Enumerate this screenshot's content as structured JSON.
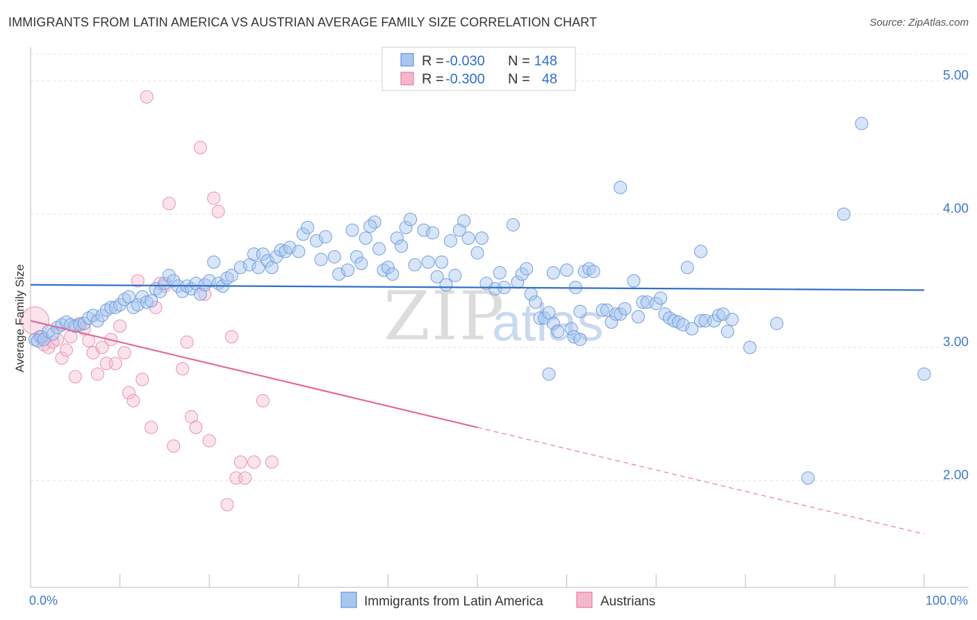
{
  "title": "IMMIGRANTS FROM LATIN AMERICA VS AUSTRIAN AVERAGE FAMILY SIZE CORRELATION CHART",
  "source": "Source: ZipAtlas.com",
  "watermark": {
    "zip": "ZIP",
    "atlas": "atlas"
  },
  "colors": {
    "blue": "#4a84d4",
    "blue_fill": "#a9c6ef",
    "pink": "#e36a96",
    "pink_fill": "#f4b8cc",
    "axis_text": "#3f78c8"
  },
  "chart_data": {
    "type": "scatter",
    "title": "IMMIGRANTS FROM LATIN AMERICA VS AUSTRIAN AVERAGE FAMILY SIZE CORRELATION CHART",
    "xlabel": "",
    "ylabel": "Average Family Size",
    "xlim": [
      0,
      100
    ],
    "ylim": [
      1.2,
      5.2
    ],
    "x_tick_labels": [
      "0.0%",
      "100.0%"
    ],
    "y_ticks": [
      2.0,
      3.0,
      4.0,
      5.0
    ],
    "y_tick_labels": [
      "2.00",
      "3.00",
      "4.00",
      "5.00"
    ],
    "grid": true,
    "legend_position": "top-center",
    "legend": [
      {
        "r_label": "R =",
        "r": "-0.030",
        "n_label": "N =",
        "n": "148"
      },
      {
        "r_label": "R =",
        "r": "-0.300",
        "n_label": "N =",
        "n": "48"
      }
    ],
    "series": [
      {
        "name": "Immigrants from Latin America",
        "color": "#4a84d4",
        "trend": {
          "x": [
            0,
            100
          ],
          "y": [
            3.47,
            3.43
          ],
          "style": "solid"
        },
        "points": [
          [
            0.5,
            3.06
          ],
          [
            0.8,
            3.05
          ],
          [
            1.2,
            3.08
          ],
          [
            1.5,
            3.06
          ],
          [
            2.0,
            3.12
          ],
          [
            2.5,
            3.1
          ],
          [
            3.0,
            3.15
          ],
          [
            3.5,
            3.17
          ],
          [
            4.0,
            3.19
          ],
          [
            4.5,
            3.17
          ],
          [
            5.0,
            3.16
          ],
          [
            5.5,
            3.17
          ],
          [
            6.0,
            3.18
          ],
          [
            6.5,
            3.22
          ],
          [
            7.0,
            3.24
          ],
          [
            7.5,
            3.2
          ],
          [
            8.0,
            3.24
          ],
          [
            8.5,
            3.28
          ],
          [
            9.0,
            3.3
          ],
          [
            9.5,
            3.3
          ],
          [
            10.0,
            3.32
          ],
          [
            10.5,
            3.36
          ],
          [
            11.0,
            3.38
          ],
          [
            11.5,
            3.3
          ],
          [
            12.0,
            3.32
          ],
          [
            12.5,
            3.38
          ],
          [
            13.0,
            3.34
          ],
          [
            13.5,
            3.35
          ],
          [
            14.0,
            3.44
          ],
          [
            14.5,
            3.42
          ],
          [
            15.0,
            3.48
          ],
          [
            15.5,
            3.54
          ],
          [
            16.0,
            3.5
          ],
          [
            16.5,
            3.46
          ],
          [
            17.0,
            3.42
          ],
          [
            17.5,
            3.46
          ],
          [
            18.0,
            3.44
          ],
          [
            18.5,
            3.48
          ],
          [
            19.0,
            3.4
          ],
          [
            19.5,
            3.47
          ],
          [
            20.0,
            3.5
          ],
          [
            20.5,
            3.64
          ],
          [
            21.0,
            3.48
          ],
          [
            21.5,
            3.46
          ],
          [
            22.0,
            3.52
          ],
          [
            22.5,
            3.54
          ],
          [
            23.5,
            3.6
          ],
          [
            24.5,
            3.62
          ],
          [
            25.0,
            3.7
          ],
          [
            25.5,
            3.6
          ],
          [
            26.0,
            3.7
          ],
          [
            26.5,
            3.65
          ],
          [
            27.0,
            3.6
          ],
          [
            27.5,
            3.68
          ],
          [
            28.0,
            3.73
          ],
          [
            28.5,
            3.72
          ],
          [
            29.0,
            3.75
          ],
          [
            30.0,
            3.72
          ],
          [
            30.5,
            3.85
          ],
          [
            31.0,
            3.9
          ],
          [
            32.0,
            3.8
          ],
          [
            32.5,
            3.66
          ],
          [
            33.0,
            3.83
          ],
          [
            34.0,
            3.68
          ],
          [
            34.5,
            3.55
          ],
          [
            35.5,
            3.58
          ],
          [
            36.0,
            3.88
          ],
          [
            36.5,
            3.68
          ],
          [
            37.0,
            3.63
          ],
          [
            37.5,
            3.82
          ],
          [
            38.5,
            3.94
          ],
          [
            38.0,
            3.91
          ],
          [
            39.0,
            3.74
          ],
          [
            39.5,
            3.58
          ],
          [
            40.0,
            3.6
          ],
          [
            40.5,
            3.55
          ],
          [
            41.0,
            3.82
          ],
          [
            41.5,
            3.76
          ],
          [
            42.0,
            3.9
          ],
          [
            42.5,
            3.96
          ],
          [
            43.0,
            3.62
          ],
          [
            44.0,
            3.88
          ],
          [
            44.5,
            3.64
          ],
          [
            45.0,
            3.86
          ],
          [
            45.5,
            3.53
          ],
          [
            46.0,
            3.64
          ],
          [
            46.5,
            3.47
          ],
          [
            47.0,
            3.8
          ],
          [
            47.5,
            3.54
          ],
          [
            48.0,
            3.88
          ],
          [
            48.5,
            3.95
          ],
          [
            49.0,
            3.82
          ],
          [
            50.0,
            3.71
          ],
          [
            50.5,
            3.82
          ],
          [
            51.0,
            3.48
          ],
          [
            52.0,
            3.44
          ],
          [
            52.5,
            3.56
          ],
          [
            53.0,
            3.45
          ],
          [
            54.0,
            3.92
          ],
          [
            54.5,
            3.49
          ],
          [
            55.0,
            3.55
          ],
          [
            55.5,
            3.59
          ],
          [
            56.0,
            3.4
          ],
          [
            56.5,
            3.34
          ],
          [
            57.0,
            3.22
          ],
          [
            57.5,
            3.22
          ],
          [
            58.0,
            3.26
          ],
          [
            58.5,
            3.18
          ],
          [
            59.0,
            3.12
          ],
          [
            60.0,
            3.58
          ],
          [
            60.5,
            3.14
          ],
          [
            61.0,
            3.45
          ],
          [
            61.5,
            3.27
          ],
          [
            62.0,
            3.57
          ],
          [
            62.5,
            3.59
          ],
          [
            63.0,
            3.57
          ],
          [
            64.0,
            3.28
          ],
          [
            64.5,
            3.28
          ],
          [
            65.0,
            3.19
          ],
          [
            65.5,
            3.25
          ],
          [
            66.0,
            3.25
          ],
          [
            66.5,
            3.29
          ],
          [
            67.5,
            3.5
          ],
          [
            68.0,
            3.23
          ],
          [
            68.5,
            3.34
          ],
          [
            69.0,
            3.34
          ],
          [
            70.0,
            3.33
          ],
          [
            70.5,
            3.37
          ],
          [
            71.0,
            3.25
          ],
          [
            71.5,
            3.22
          ],
          [
            72.0,
            3.2
          ],
          [
            72.5,
            3.19
          ],
          [
            73.0,
            3.17
          ],
          [
            73.5,
            3.6
          ],
          [
            74.0,
            3.14
          ],
          [
            75.0,
            3.2
          ],
          [
            75.5,
            3.2
          ],
          [
            76.5,
            3.2
          ],
          [
            77.0,
            3.24
          ],
          [
            77.5,
            3.25
          ],
          [
            78.0,
            3.12
          ],
          [
            78.5,
            3.21
          ],
          [
            80.5,
            3.0
          ],
          [
            83.5,
            3.18
          ],
          [
            75.0,
            3.72
          ],
          [
            58.5,
            3.56
          ],
          [
            60.8,
            3.08
          ],
          [
            61.5,
            3.06
          ],
          [
            66.0,
            4.2
          ],
          [
            58.0,
            2.8
          ],
          [
            87.0,
            2.02
          ],
          [
            91.0,
            4.0
          ],
          [
            93.0,
            4.68
          ],
          [
            100.0,
            2.8
          ]
        ]
      },
      {
        "name": "Austrians",
        "color": "#e36a96",
        "trend": {
          "x": [
            0,
            50,
            100
          ],
          "y": [
            3.2,
            2.4,
            1.6
          ],
          "style": "solid-then-dashed"
        },
        "points": [
          [
            0.5,
            3.2
          ],
          [
            1.0,
            3.08
          ],
          [
            1.5,
            3.02
          ],
          [
            2.0,
            3.0
          ],
          [
            2.5,
            3.04
          ],
          [
            3.0,
            3.06
          ],
          [
            3.5,
            2.92
          ],
          [
            4.0,
            2.98
          ],
          [
            4.5,
            3.08
          ],
          [
            5.0,
            2.78
          ],
          [
            5.5,
            3.18
          ],
          [
            6.0,
            3.14
          ],
          [
            6.5,
            3.05
          ],
          [
            7.0,
            2.96
          ],
          [
            7.5,
            2.8
          ],
          [
            8.0,
            3.0
          ],
          [
            8.5,
            2.88
          ],
          [
            9.0,
            3.06
          ],
          [
            9.5,
            2.88
          ],
          [
            10.0,
            3.16
          ],
          [
            10.5,
            2.96
          ],
          [
            11.0,
            2.66
          ],
          [
            11.5,
            2.6
          ],
          [
            12.0,
            3.5
          ],
          [
            12.5,
            2.76
          ],
          [
            13.0,
            4.88
          ],
          [
            13.5,
            2.4
          ],
          [
            14.0,
            3.3
          ],
          [
            14.5,
            3.48
          ],
          [
            15.0,
            3.46
          ],
          [
            15.5,
            4.08
          ],
          [
            16.0,
            2.26
          ],
          [
            17.0,
            2.84
          ],
          [
            17.5,
            3.04
          ],
          [
            18.0,
            2.48
          ],
          [
            18.5,
            2.4
          ],
          [
            19.0,
            4.5
          ],
          [
            19.5,
            3.4
          ],
          [
            20.0,
            2.3
          ],
          [
            20.5,
            4.12
          ],
          [
            21.0,
            4.02
          ],
          [
            22.0,
            1.82
          ],
          [
            22.5,
            3.08
          ],
          [
            23.0,
            2.02
          ],
          [
            23.5,
            2.14
          ],
          [
            24.0,
            2.02
          ],
          [
            25.0,
            2.14
          ],
          [
            26.0,
            2.6
          ],
          [
            27.0,
            2.14
          ]
        ]
      }
    ]
  }
}
